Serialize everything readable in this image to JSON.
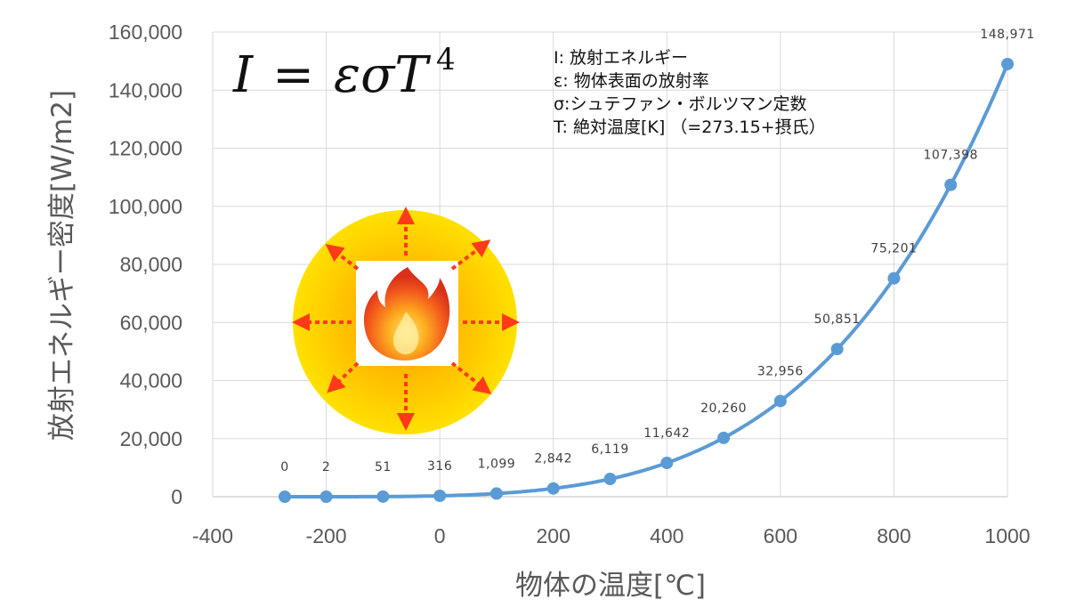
{
  "formula": {
    "lhs": "I",
    "eq": "=",
    "rhs": "εσT",
    "exponent": "4"
  },
  "legend": [
    "I: 放射エネルギー",
    "ε: 物体表面の放射率",
    "σ:シュテファン・ボルツマン定数",
    "T: 絶対温度[K] （=273.15+摂氏）"
  ],
  "chart_data": {
    "type": "scatter",
    "xlabel": "物体の温度[℃]",
    "ylabel": "放射エネルギー密度[W/m2]",
    "xlim": [
      -400,
      1000
    ],
    "ylim": [
      0,
      160000
    ],
    "x_ticks": [
      "-400",
      "-200",
      "0",
      "200",
      "400",
      "600",
      "800",
      "1000"
    ],
    "y_ticks": [
      "0",
      "20,000",
      "40,000",
      "60,000",
      "80,000",
      "100,000",
      "120,000",
      "140,000",
      "160,000"
    ],
    "grid": true,
    "series": [
      {
        "x": [
          -273,
          -200,
          -100,
          0,
          100,
          200,
          300,
          400,
          500,
          600,
          700,
          800,
          900,
          1000
        ],
        "y": [
          0,
          2,
          51,
          316,
          1099,
          2842,
          6119,
          11642,
          20260,
          32956,
          50851,
          75201,
          107398,
          148971
        ],
        "labels": [
          "0",
          "2",
          "51",
          "316",
          "1,099",
          "2,842",
          "6,119",
          "11,642",
          "20,260",
          "32,956",
          "50,851",
          "75,201",
          "107,398",
          "148,971"
        ],
        "color": "#5b9bd5"
      }
    ]
  },
  "colors": {
    "line": "#5b9bd5",
    "grid": "#d9d9d9",
    "glow_center": "#ffa200",
    "glow_edge": "#ffd800",
    "arrow": "#ff3a1a",
    "flame": "#e8421c"
  },
  "icon": "radiating-flame-icon"
}
